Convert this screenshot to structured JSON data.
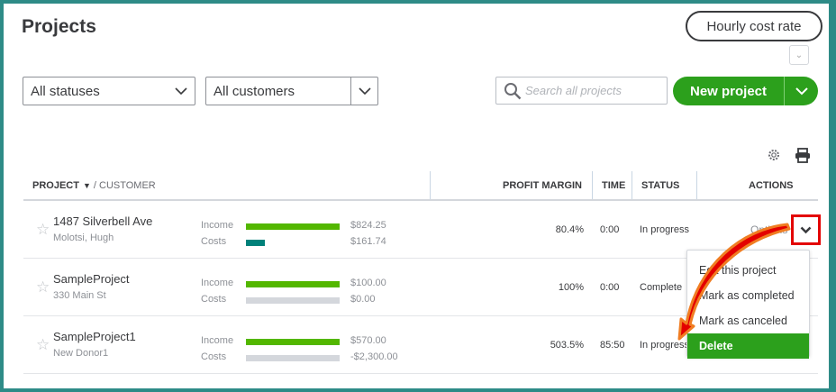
{
  "header": {
    "title": "Projects",
    "hourly_cost_rate": "Hourly cost rate"
  },
  "filters": {
    "status": "All statuses",
    "customer": "All customers",
    "search_placeholder": "Search all projects"
  },
  "new_project": "New project",
  "columns": {
    "project": "PROJECT",
    "customer": "/ CUSTOMER",
    "profit_margin": "PROFIT MARGIN",
    "time": "TIME",
    "status": "STATUS",
    "actions": "ACTIONS"
  },
  "rows": [
    {
      "name": "1487 Silverbell Ave",
      "customer": "Molotsi, Hugh",
      "income_label": "Income",
      "costs_label": "Costs",
      "income": "$824.25",
      "costs": "$161.74",
      "income_fill": 1.0,
      "costs_fill": 0.2,
      "profit_margin": "80.4%",
      "time": "0:00",
      "status": "In progress",
      "action": "Options"
    },
    {
      "name": "SampleProject",
      "customer": "330 Main St",
      "income_label": "Income",
      "costs_label": "Costs",
      "income": "$100.00",
      "costs": "$0.00",
      "income_fill": 1.0,
      "costs_fill": 0,
      "profit_margin": "100%",
      "time": "0:00",
      "status": "Complete"
    },
    {
      "name": "SampleProject1",
      "customer": "New Donor1",
      "income_label": "Income",
      "costs_label": "Costs",
      "income": "$570.00",
      "costs": "-$2,300.00",
      "income_fill": 1.0,
      "costs_fill": 0,
      "profit_margin": "503.5%",
      "time": "85:50",
      "status": "In progress"
    }
  ],
  "actions_menu": [
    "Edit this project",
    "Mark as completed",
    "Mark as canceled",
    "Delete"
  ],
  "colors": {
    "accent": "#2ca01c",
    "income": "#53b700",
    "costs": "#00817a",
    "empty": "#d4d7dc",
    "highlight": "#e30000",
    "arrow": "#f07d22"
  }
}
